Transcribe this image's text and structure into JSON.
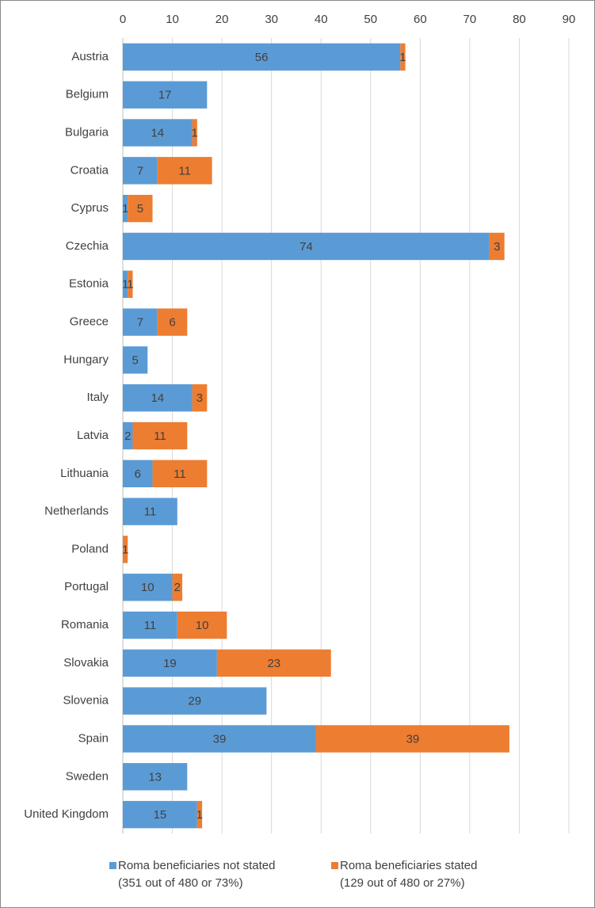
{
  "chart_data": {
    "type": "stacked-bar-horizontal",
    "categories": [
      "Austria",
      "Belgium",
      "Bulgaria",
      "Croatia",
      "Cyprus",
      "Czechia",
      "Estonia",
      "Greece",
      "Hungary",
      "Italy",
      "Latvia",
      "Lithuania",
      "Netherlands",
      "Poland",
      "Portugal",
      "Romania",
      "Slovakia",
      "Slovenia",
      "Spain",
      "Sweden",
      "United Kingdom"
    ],
    "series": [
      {
        "name": "Roma beneficiaries not stated",
        "detail": "(351 out of 480 or 73%)",
        "color": "#5b9bd5",
        "values": [
          56,
          17,
          14,
          7,
          1,
          74,
          1,
          7,
          5,
          14,
          2,
          6,
          11,
          null,
          10,
          11,
          19,
          29,
          39,
          13,
          15
        ]
      },
      {
        "name": "Roma beneficiaries stated",
        "detail": "(129 out of 480 or 27%)",
        "color": "#ed7d31",
        "values": [
          1,
          null,
          1,
          11,
          5,
          3,
          1,
          6,
          null,
          3,
          11,
          11,
          null,
          1,
          2,
          10,
          23,
          null,
          39,
          null,
          1
        ]
      }
    ],
    "xlim": [
      0,
      90
    ],
    "xticks": [
      0,
      10,
      20,
      30,
      40,
      50,
      60,
      70,
      80,
      90
    ],
    "grid": true,
    "legend": "bottom"
  }
}
